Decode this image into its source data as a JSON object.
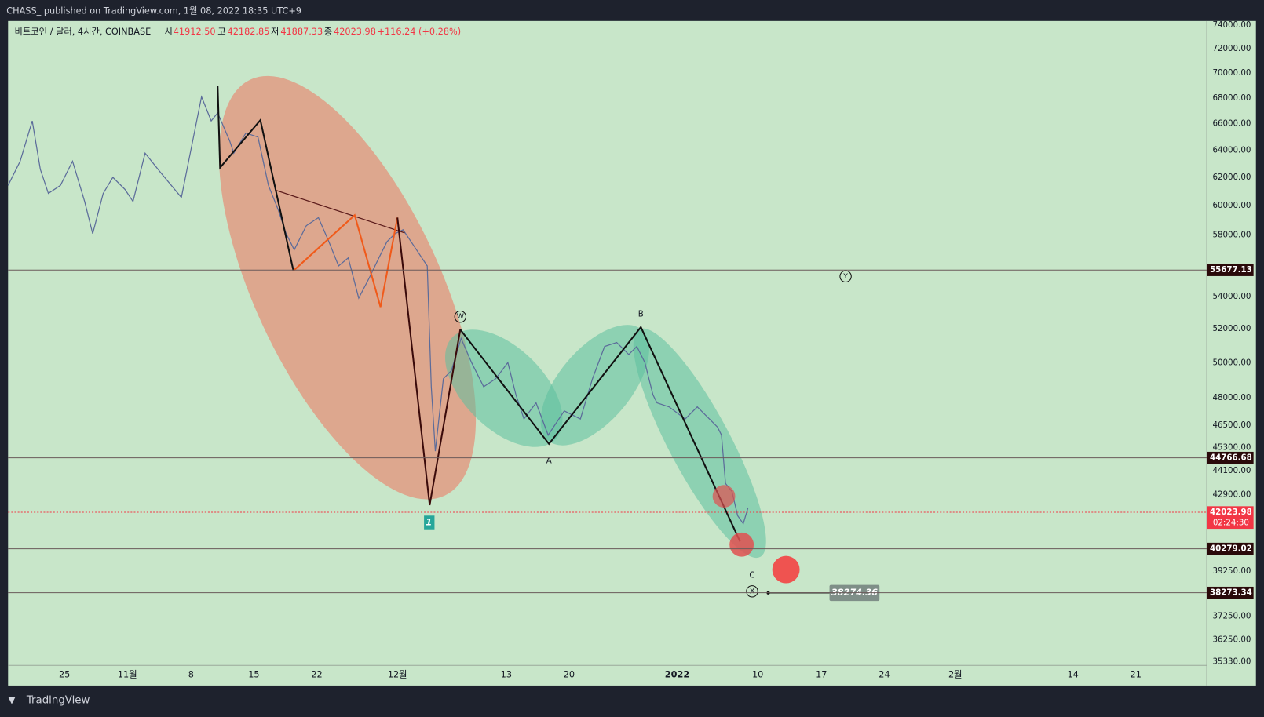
{
  "header": {
    "text": "CHASS_ published on TradingView.com, 1월 08, 2022 18:35 UTC+9"
  },
  "legend": {
    "symbol": "비트코인 / 달러, 4시간, COINBASE",
    "open_label": "시",
    "open": "41912.50",
    "high_label": "고",
    "high": "42182.85",
    "low_label": "저",
    "low": "41887.33",
    "close_label": "종",
    "close": "42023.98",
    "change": "+116.24 (+0.28%)"
  },
  "yaxis": {
    "labels": [
      "74000.00",
      "72000.00",
      "70000.00",
      "68000.00",
      "66000.00",
      "64000.00",
      "62000.00",
      "60000.00",
      "58000.00",
      "54000.00",
      "52000.00",
      "50000.00",
      "48000.00",
      "46500.00",
      "45300.00",
      "44100.00",
      "42900.00",
      "39250.00",
      "37250.00",
      "36250.00",
      "35330.00"
    ]
  },
  "price_tags": [
    {
      "label": "55677.13",
      "color": "#2a0a0a"
    },
    {
      "label": "44766.68",
      "color": "#2a0a0a"
    },
    {
      "label": "42023.98",
      "color": "#f23645",
      "countdown": "02:24:30"
    },
    {
      "label": "40279.02",
      "color": "#2a0a0a"
    },
    {
      "label": "38273.34",
      "color": "#2a0a0a"
    }
  ],
  "xaxis": {
    "labels": [
      "25",
      "11월",
      "8",
      "15",
      "22",
      "12월",
      "13",
      "20",
      "2022",
      "10",
      "17",
      "24",
      "2월",
      "14",
      "21"
    ]
  },
  "annotations": {
    "w": "W",
    "a": "A",
    "b": "B",
    "c": "C",
    "x": "X",
    "y": "Y",
    "wave_1": "1",
    "target": "38274.36"
  },
  "footer": {
    "brand": "TradingView"
  }
}
